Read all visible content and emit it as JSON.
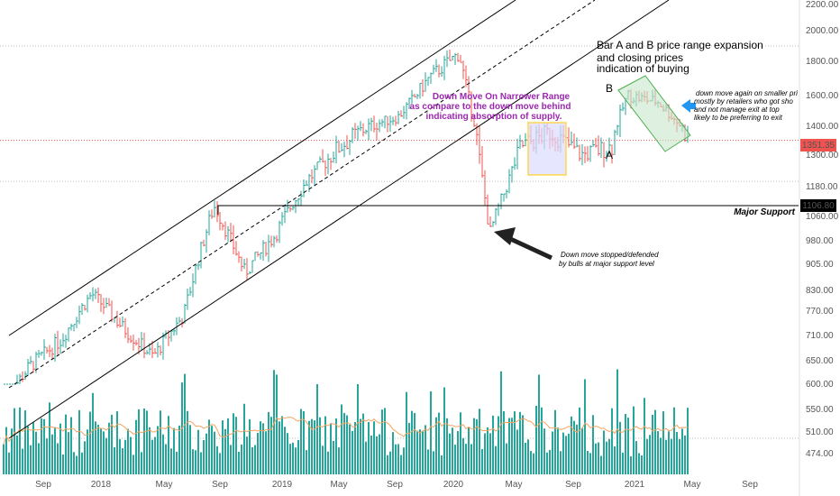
{
  "chart_data": {
    "type": "candlestick",
    "y_ticks": [
      "2200.00",
      "2000.00",
      "1800.00",
      "1600.00",
      "1400.00",
      "1300.00",
      "1180.00",
      "1060.00",
      "980.00",
      "905.00",
      "830.00",
      "770.00",
      "710.00",
      "650.00",
      "600.00",
      "550.00",
      "510.00",
      "474.00"
    ],
    "x_ticks": [
      "Sep",
      "2018",
      "May",
      "Sep",
      "2019",
      "May",
      "Sep",
      "2020",
      "May",
      "Sep",
      "2021",
      "May",
      "Sep"
    ],
    "price_label": "1351.35",
    "support_level_label": "1106.80",
    "support_label": "Major Support",
    "support_value": 1106.8,
    "current_price": 1351.35,
    "approx_close_path": [
      {
        "date": "2017-07",
        "close": 560
      },
      {
        "date": "2017-09",
        "close": 640
      },
      {
        "date": "2017-11",
        "close": 700
      },
      {
        "date": "2018-01",
        "close": 820
      },
      {
        "date": "2018-03",
        "close": 730
      },
      {
        "date": "2018-05",
        "close": 660
      },
      {
        "date": "2018-07",
        "close": 760
      },
      {
        "date": "2018-09",
        "close": 1100
      },
      {
        "date": "2018-11",
        "close": 880
      },
      {
        "date": "2019-01",
        "close": 1000
      },
      {
        "date": "2019-03",
        "close": 1200
      },
      {
        "date": "2019-05",
        "close": 1320
      },
      {
        "date": "2019-07",
        "close": 1400
      },
      {
        "date": "2019-09",
        "close": 1460
      },
      {
        "date": "2019-11",
        "close": 1700
      },
      {
        "date": "2020-01",
        "close": 1850
      },
      {
        "date": "2020-03",
        "close": 1000
      },
      {
        "date": "2020-05",
        "close": 1330
      },
      {
        "date": "2020-07",
        "close": 1380
      },
      {
        "date": "2020-09",
        "close": 1300
      },
      {
        "date": "2020-11",
        "close": 1330
      },
      {
        "date": "2020-12",
        "close": 1600
      },
      {
        "date": "2021-02",
        "close": 1560
      },
      {
        "date": "2021-04",
        "close": 1351
      }
    ]
  },
  "annotations": {
    "bar_ab_line1": "Bar A  and B price range expansion",
    "bar_ab_line2": "and closing prices",
    "bar_ab_line3": "indication of buying",
    "narrow_line1": "Down Move On Narrower Range",
    "narrow_line2": "as compare to the down move behind",
    "narrow_line3": "indicating absorption of supply.",
    "right_line1": "down move again on smaller pri",
    "right_line2": "mostly by retailers who got sho",
    "right_line3": "and not manage exit at top",
    "right_line4": "likely to be preferring to exit",
    "stop_line1": "Down move stopped/defended",
    "stop_line2": "by bulls at major support level",
    "label_a": "A",
    "label_b": "B"
  },
  "colors": {
    "up": "#26a69a",
    "down": "#ef5350",
    "volume": "#26a69a",
    "ma": "#f4a460",
    "purple_text": "#9c27b0",
    "blue_box": "#dcdcff",
    "yellow_border": "#ffd54f",
    "green_box": "#c8e6c9",
    "arrow_blue": "#2196f3",
    "price_tag": "#ef5350"
  }
}
